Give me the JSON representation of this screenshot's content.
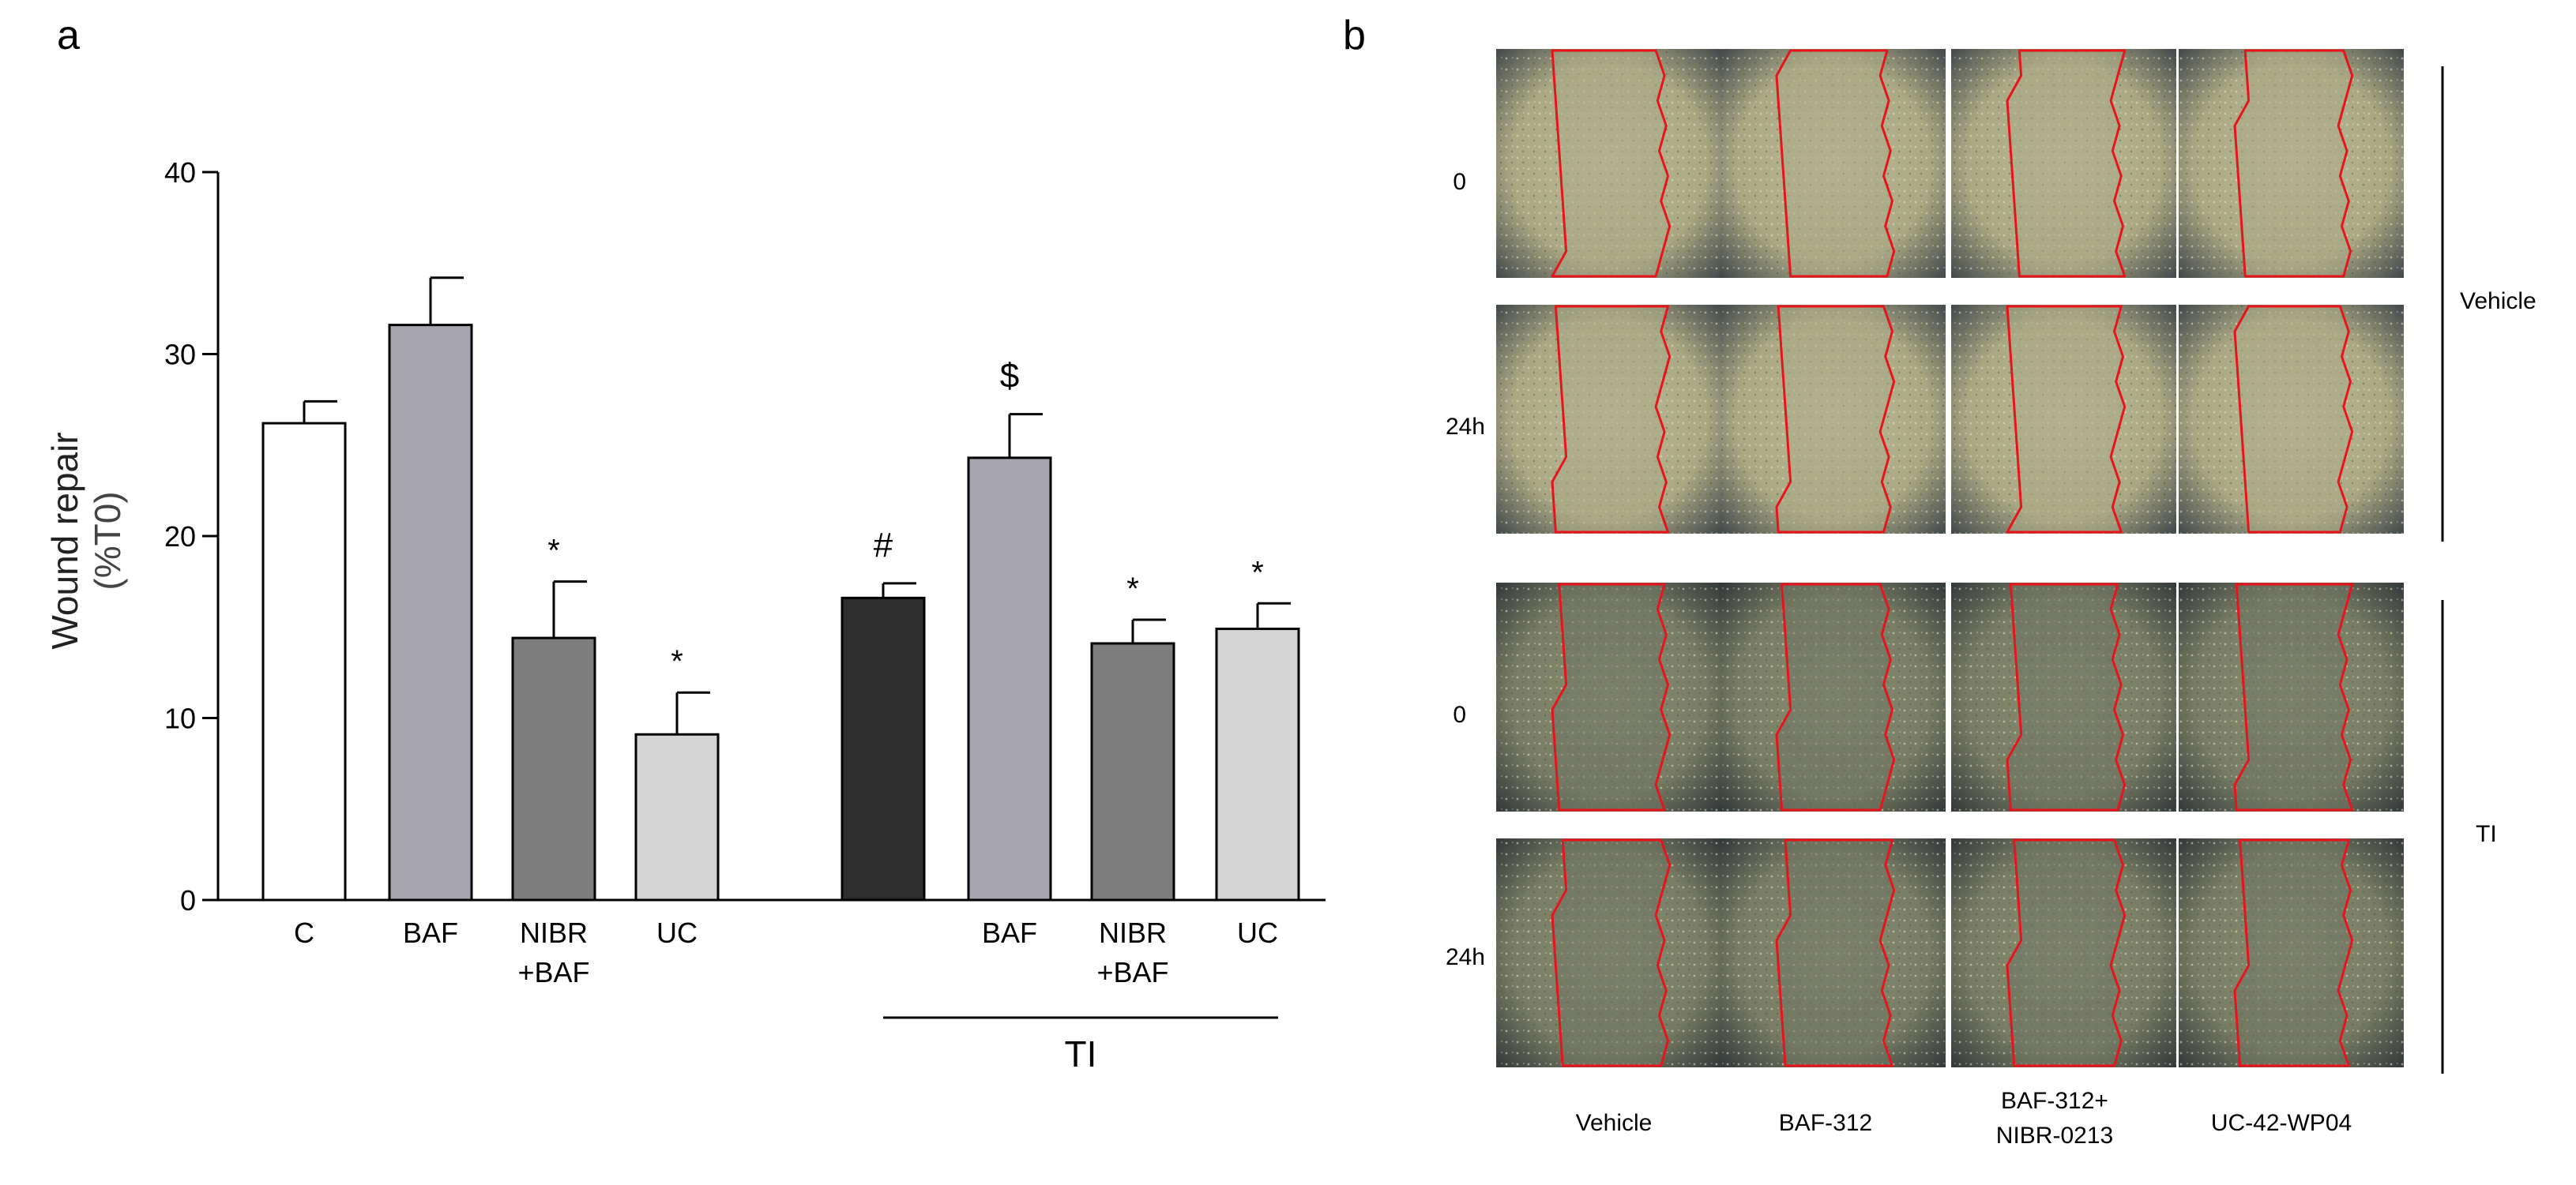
{
  "panel_a": {
    "letter": "a"
  },
  "panel_b": {
    "letter": "b",
    "row_labels": [
      "0",
      "24h",
      "0",
      "24h"
    ],
    "column_labels": [
      [
        "Vehicle"
      ],
      [
        "BAF-312"
      ],
      [
        "BAF-312+",
        "NIBR-0213"
      ],
      [
        "UC-42-WP04"
      ]
    ],
    "group_labels": {
      "top": "Vehicle",
      "bottom": "TI"
    },
    "colors": {
      "wound_outline": "#e8141c",
      "cells_top": "#b9b58e",
      "cells_bottom": "#7f8468"
    }
  },
  "chart_data": {
    "type": "bar",
    "ylabel": [
      "Wound repair",
      "(%T0)"
    ],
    "ylim": [
      0,
      40
    ],
    "yticks": [
      "0",
      "10",
      "20",
      "30",
      "40"
    ],
    "categories": [
      [
        "C"
      ],
      [
        "BAF"
      ],
      [
        "NIBR",
        "+BAF"
      ],
      [
        "UC"
      ],
      [
        ""
      ],
      [
        "BAF"
      ],
      [
        "NIBR",
        "+BAF"
      ],
      [
        "UC"
      ]
    ],
    "values": [
      26.2,
      31.6,
      14.4,
      9.1,
      16.6,
      24.3,
      14.1,
      14.9
    ],
    "errors": [
      1.2,
      2.6,
      3.1,
      2.3,
      0.8,
      2.4,
      1.3,
      1.4
    ],
    "annotations": [
      "",
      "",
      "*",
      "*",
      "#",
      "$",
      "*",
      "*"
    ],
    "colors": [
      "#ffffff",
      "#a6a5ae",
      "#7d7d7d",
      "#d3d4d3",
      "#2d2d2e",
      "#a6a5ae",
      "#7d7d7d",
      "#d3d4d3"
    ],
    "group_label": "TI",
    "grid": false
  }
}
